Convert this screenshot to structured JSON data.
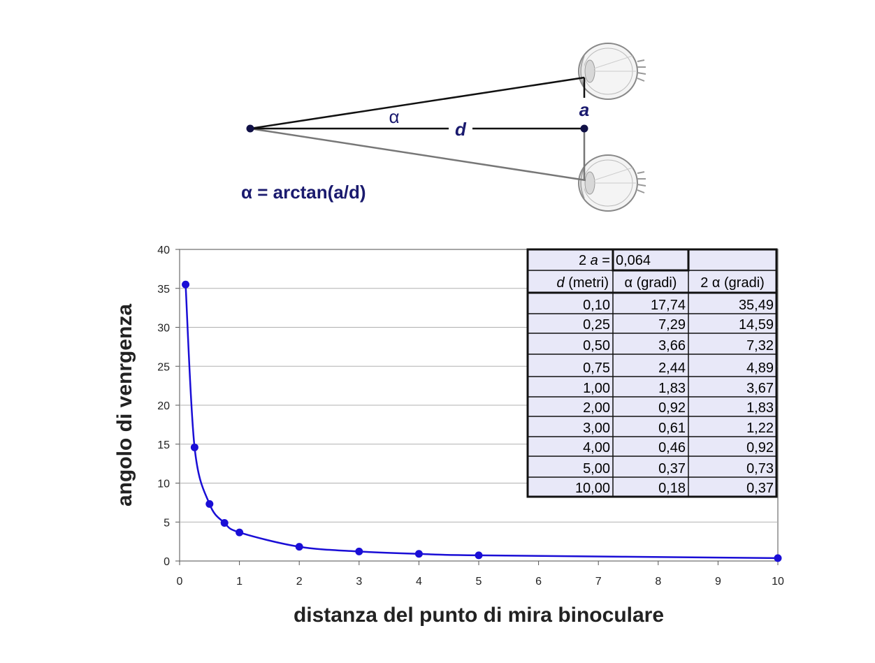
{
  "diagram": {
    "alpha_symbol": "α",
    "d_label": "d",
    "a_label": "a",
    "formula": "α = arctan(a/d)"
  },
  "table": {
    "header_row1": [
      "2 a =",
      "0,064",
      ""
    ],
    "header_row2": [
      "d (metri)",
      "α (gradi)",
      "2 α (gradi)"
    ],
    "rows": [
      [
        "0,10",
        "17,74",
        "35,49"
      ],
      [
        "0,25",
        "7,29",
        "14,59"
      ],
      [
        "0,50",
        "3,66",
        "7,32"
      ],
      [
        "0,75",
        "2,44",
        "4,89"
      ],
      [
        "1,00",
        "1,83",
        "3,67"
      ],
      [
        "2,00",
        "0,92",
        "1,83"
      ],
      [
        "3,00",
        "0,61",
        "1,22"
      ],
      [
        "4,00",
        "0,46",
        "0,92"
      ],
      [
        "5,00",
        "0,37",
        "0,73"
      ],
      [
        "10,00",
        "0,18",
        "0,37"
      ]
    ]
  },
  "chart_data": {
    "type": "line",
    "title": "",
    "xlabel": "distanza del punto di mira binoculare",
    "ylabel": "angolo di venrgenza",
    "xlim": [
      0,
      10
    ],
    "ylim": [
      0,
      40
    ],
    "x_ticks": [
      "0",
      "1",
      "2",
      "3",
      "4",
      "5",
      "6",
      "7",
      "8",
      "9",
      "10"
    ],
    "y_ticks": [
      "0",
      "5",
      "10",
      "15",
      "20",
      "25",
      "30",
      "35",
      "40"
    ],
    "grid": "horizontal",
    "series_color": "#1a0ed6",
    "series": [
      {
        "x": [
          0.1,
          0.25,
          0.5,
          0.75,
          1,
          2,
          3,
          4,
          5,
          10
        ],
        "y": [
          35.49,
          14.59,
          7.32,
          4.89,
          3.67,
          1.83,
          1.22,
          0.92,
          0.73,
          0.37
        ]
      }
    ]
  }
}
